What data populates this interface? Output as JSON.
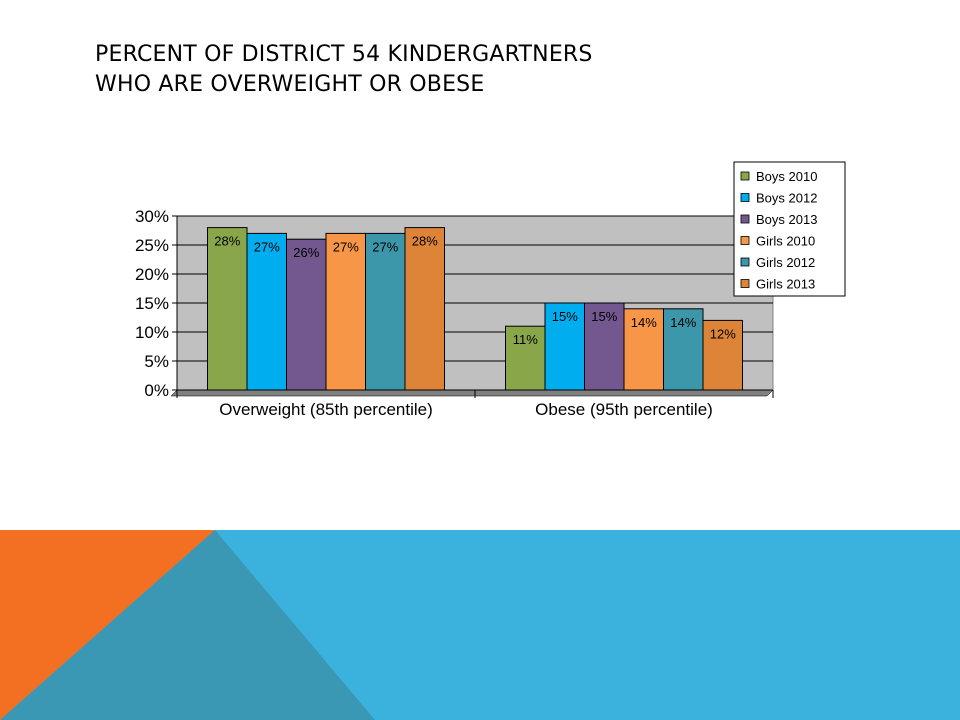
{
  "slide": {
    "title_line1": "PERCENT OF DISTRICT 54 KINDERGARTNERS",
    "title_line2": "WHO ARE OVERWEIGHT OR OBESE"
  },
  "colors": {
    "band_blue": "#3bb2de",
    "band_orange": "#f36f21",
    "band_teal": "#3a98b4",
    "plot_bg": "#c0c0c0"
  },
  "chart_data": {
    "type": "bar",
    "title": "",
    "xlabel": "",
    "ylabel": "",
    "ylim": [
      0,
      30
    ],
    "y_ticks": [
      0,
      5,
      10,
      15,
      20,
      25,
      30
    ],
    "y_tick_labels": [
      "0%",
      "5%",
      "10%",
      "15%",
      "20%",
      "25%",
      "30%"
    ],
    "grid": true,
    "legend_position": "top-right",
    "categories": [
      "Overweight (85th percentile)",
      "Obese (95th percentile)"
    ],
    "series": [
      {
        "name": "Boys 2010",
        "color": "#8aa64b",
        "values": [
          28,
          11
        ],
        "labels": [
          "28%",
          "11%"
        ]
      },
      {
        "name": "Boys 2012",
        "color": "#00aeef",
        "values": [
          27,
          15
        ],
        "labels": [
          "27%",
          "15%"
        ]
      },
      {
        "name": "Boys 2013",
        "color": "#73578f",
        "values": [
          26,
          15
        ],
        "labels": [
          "26%",
          "15%"
        ]
      },
      {
        "name": "Girls 2010",
        "color": "#f79646",
        "values": [
          27,
          14
        ],
        "labels": [
          "27%",
          "14%"
        ]
      },
      {
        "name": "Girls 2012",
        "color": "#3c97ab",
        "values": [
          27,
          14
        ],
        "labels": [
          "27%",
          "14%"
        ]
      },
      {
        "name": "Girls 2013",
        "color": "#de8438",
        "values": [
          28,
          12
        ],
        "labels": [
          "28%",
          "12%"
        ]
      }
    ]
  }
}
